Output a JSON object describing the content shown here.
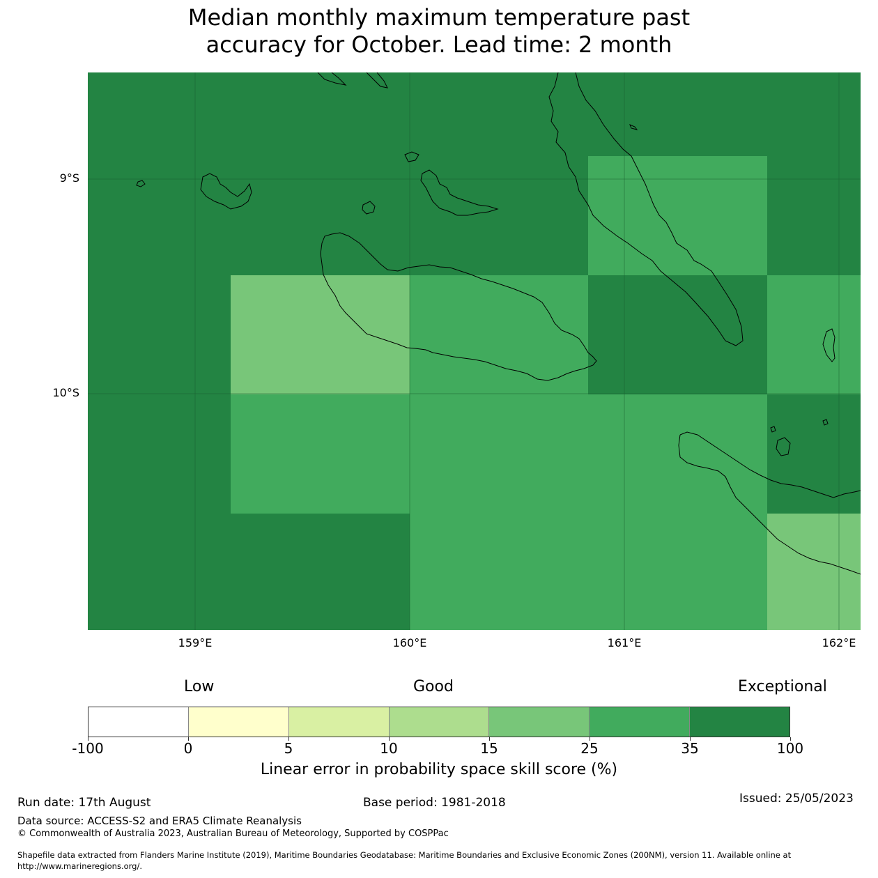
{
  "title": {
    "line1": "Median monthly maximum temperature past",
    "line2": "accuracy for October. Lead time: 2 month"
  },
  "map": {
    "lat_labels": [
      "9°S",
      "10°S"
    ],
    "lon_labels": [
      "159°E",
      "160°E",
      "161°E",
      "162°E"
    ],
    "colors": {
      "dark_green": "#238443",
      "medium_green": "#41ab5d",
      "light_green": "#78c679",
      "coastline": "#000000"
    }
  },
  "colorbar": {
    "heading_low": "Low",
    "heading_good": "Good",
    "heading_exceptional": "Exceptional",
    "ticks": [
      "-100",
      "0",
      "5",
      "10",
      "15",
      "25",
      "35",
      "100"
    ],
    "colors": [
      "#ffffff",
      "#ffffcc",
      "#d9f0a3",
      "#addd8e",
      "#78c679",
      "#41ab5d",
      "#238443"
    ],
    "label": "Linear error in probability space skill score (%)"
  },
  "footer": {
    "run_date": "Run date: 17th August",
    "base_period": "Base period: 1981-2018",
    "issued": "Issued: 25/05/2023",
    "data_source": "Data source: ACCESS-S2 and ERA5 Climate Reanalysis",
    "copyright": "© Commonwealth of Australia 2023, Australian Bureau of Meteorology, Supported by COSPPac",
    "shapefile_line1": "Shapefile data extracted from Flanders Marine Institute (2019), Maritime Boundaries Geodatabase: Maritime Boundaries and Exclusive Economic Zones (200NM), version 11. Available online at",
    "shapefile_line2": "http://www.marineregions.org/."
  }
}
